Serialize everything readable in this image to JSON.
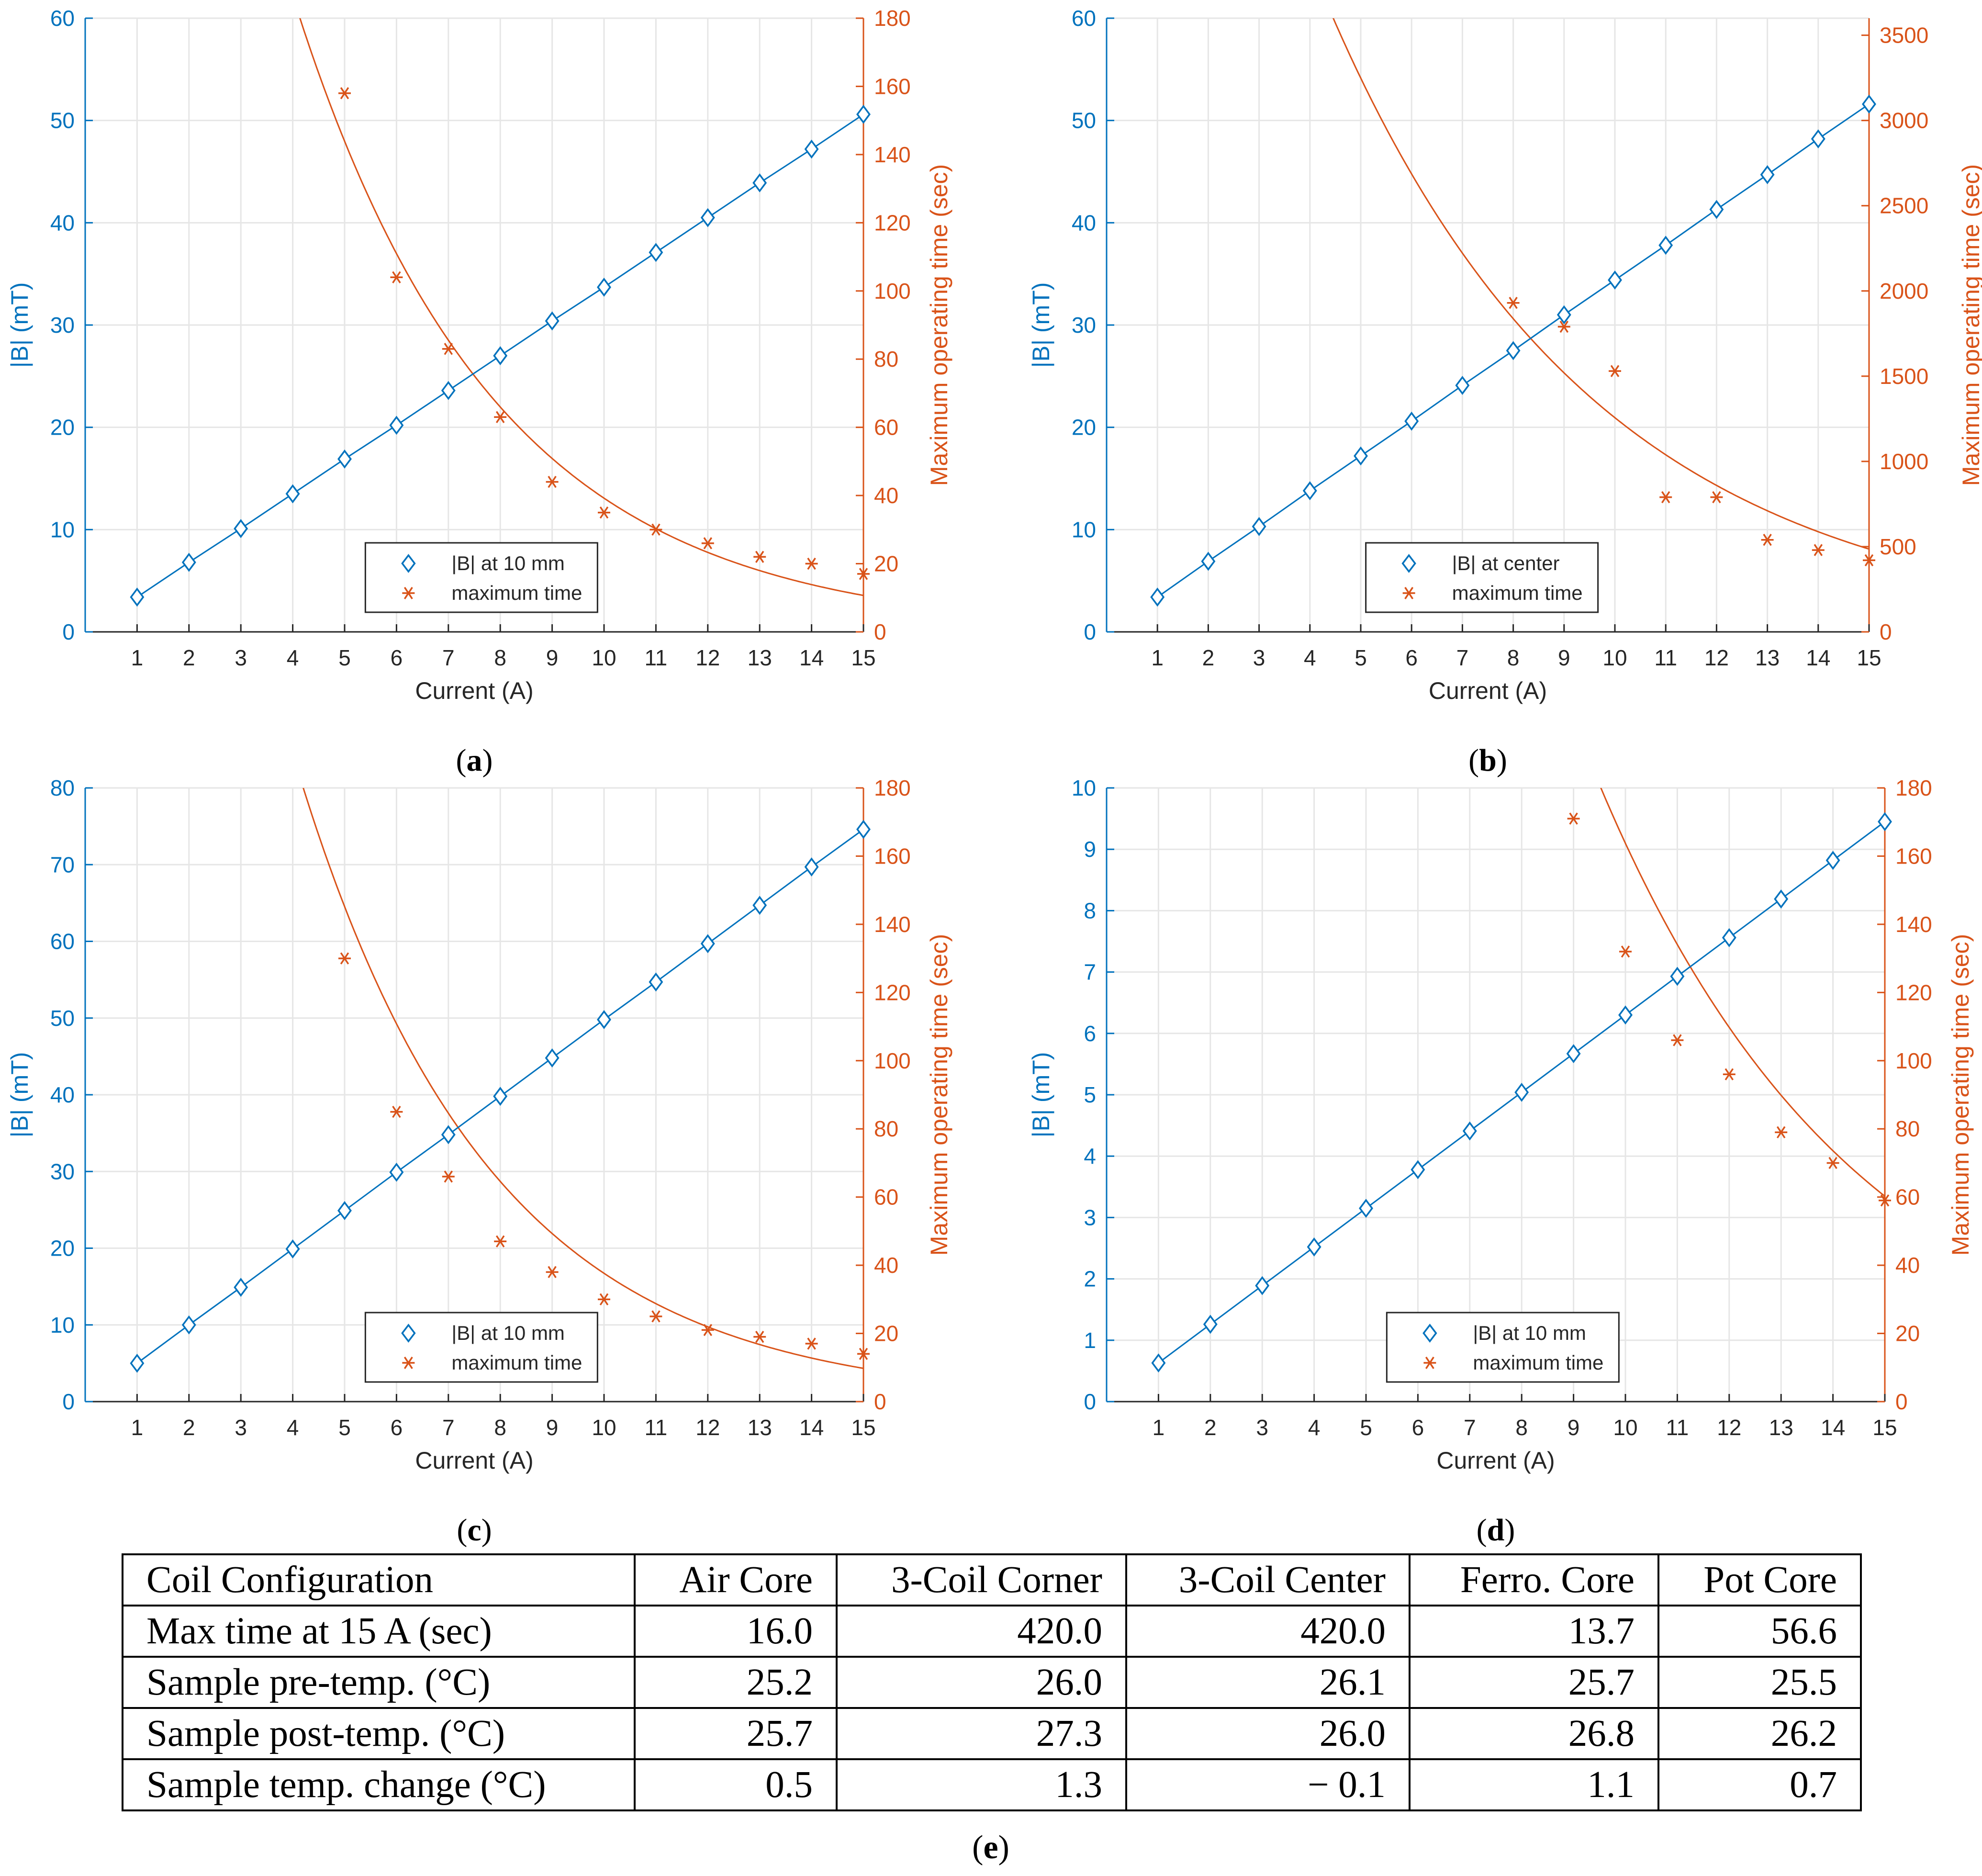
{
  "chart_data": [
    {
      "id": "a",
      "type": "line",
      "caption": "a",
      "xlabel": "Current (A)",
      "ylabel": "|B| (mT)",
      "ylabel_right": "Maximum operating time (sec)",
      "x": [
        1,
        2,
        3,
        4,
        5,
        6,
        7,
        8,
        9,
        10,
        11,
        12,
        13,
        14,
        15
      ],
      "xlim": [
        0,
        15
      ],
      "ylim": [
        0,
        60
      ],
      "yticks": [
        0,
        10,
        20,
        30,
        40,
        50,
        60
      ],
      "ylim_right": [
        0,
        180
      ],
      "yticks_right": [
        0,
        20,
        40,
        60,
        80,
        100,
        120,
        140,
        160,
        180
      ],
      "grid": true,
      "legend": "bottom-right",
      "series": [
        {
          "name": "|B| at 10 mm",
          "axis": "left",
          "marker": "diamond",
          "values": [
            3.4,
            6.8,
            10.1,
            13.5,
            16.9,
            20.2,
            23.6,
            27.0,
            30.4,
            33.7,
            37.1,
            40.5,
            43.9,
            47.2,
            50.6
          ]
        },
        {
          "name": "maximum time",
          "axis": "right",
          "marker": "asterisk",
          "values": [
            null,
            null,
            null,
            null,
            158,
            104,
            83,
            63,
            44,
            35,
            30,
            26,
            22,
            20,
            17
          ]
        }
      ],
      "fit": {
        "axis": "right",
        "exp_a": 528,
        "exp_b": 0.26
      }
    },
    {
      "id": "b",
      "type": "line",
      "caption": "b",
      "xlabel": "Current (A)",
      "ylabel": "|B| (mT)",
      "ylabel_right": "Maximum operating time (sec)",
      "x": [
        1,
        2,
        3,
        4,
        5,
        6,
        7,
        8,
        9,
        10,
        11,
        12,
        13,
        14,
        15
      ],
      "xlim": [
        0,
        15
      ],
      "ylim": [
        0,
        60
      ],
      "yticks": [
        0,
        10,
        20,
        30,
        40,
        50,
        60
      ],
      "ylim_right": [
        0,
        3600
      ],
      "yticks_right": [
        0,
        500,
        1000,
        1500,
        2000,
        2500,
        3000,
        3500
      ],
      "grid": true,
      "legend": "bottom-right",
      "series": [
        {
          "name": "|B| at center",
          "axis": "left",
          "marker": "diamond",
          "values": [
            3.4,
            6.9,
            10.3,
            13.8,
            17.2,
            20.6,
            24.1,
            27.5,
            31.0,
            34.4,
            37.8,
            41.3,
            44.7,
            48.2,
            51.6
          ]
        },
        {
          "name": "maximum time",
          "axis": "right",
          "marker": "asterisk",
          "values": [
            null,
            null,
            null,
            null,
            null,
            null,
            null,
            1930,
            1790,
            1530,
            790,
            790,
            540,
            480,
            420
          ]
        }
      ],
      "fit": {
        "axis": "right",
        "exp_a": 8400,
        "exp_b": 0.19
      }
    },
    {
      "id": "c",
      "type": "line",
      "caption": "c",
      "xlabel": "Current (A)",
      "ylabel": "|B| (mT)",
      "ylabel_right": "Maximum operating time (sec)",
      "x": [
        1,
        2,
        3,
        4,
        5,
        6,
        7,
        8,
        9,
        10,
        11,
        12,
        13,
        14,
        15
      ],
      "xlim": [
        0,
        15
      ],
      "ylim": [
        0,
        80
      ],
      "yticks": [
        0,
        10,
        20,
        30,
        40,
        50,
        60,
        70,
        80
      ],
      "ylim_right": [
        0,
        180
      ],
      "yticks_right": [
        0,
        20,
        40,
        60,
        80,
        100,
        120,
        140,
        160,
        180
      ],
      "grid": true,
      "legend": "bottom-right",
      "series": [
        {
          "name": "|B| at 10 mm",
          "axis": "left",
          "marker": "diamond",
          "values": [
            5.0,
            10.0,
            14.9,
            19.9,
            24.9,
            29.9,
            34.8,
            39.8,
            44.8,
            49.8,
            54.7,
            59.7,
            64.7,
            69.7,
            74.6
          ]
        },
        {
          "name": "maximum time",
          "axis": "right",
          "marker": "asterisk",
          "values": [
            null,
            null,
            null,
            null,
            130,
            85,
            66,
            47,
            38,
            30,
            25,
            21,
            19,
            17,
            14
          ]
        }
      ],
      "fit": {
        "axis": "right",
        "exp_a": 560,
        "exp_b": 0.27
      }
    },
    {
      "id": "d",
      "type": "line",
      "caption": "d",
      "xlabel": "Current (A)",
      "ylabel": "|B| (mT)",
      "ylabel_right": "Maximum operating time (sec)",
      "x": [
        1,
        2,
        3,
        4,
        5,
        6,
        7,
        8,
        9,
        10,
        11,
        12,
        13,
        14,
        15
      ],
      "xlim": [
        0,
        15
      ],
      "ylim": [
        0,
        10
      ],
      "yticks": [
        0,
        1,
        2,
        3,
        4,
        5,
        6,
        7,
        8,
        9,
        10
      ],
      "ylim_right": [
        0,
        180
      ],
      "yticks_right": [
        0,
        20,
        40,
        60,
        80,
        100,
        120,
        140,
        160,
        180
      ],
      "grid": true,
      "legend": "bottom-right",
      "series": [
        {
          "name": "|B| at 10 mm",
          "axis": "left",
          "marker": "diamond",
          "values": [
            0.63,
            1.26,
            1.89,
            2.52,
            3.15,
            3.78,
            4.41,
            5.04,
            5.67,
            6.3,
            6.93,
            7.56,
            8.19,
            8.82,
            9.45
          ]
        },
        {
          "name": "maximum time",
          "axis": "right",
          "marker": "asterisk",
          "values": [
            null,
            null,
            null,
            null,
            null,
            null,
            null,
            null,
            171,
            132,
            106,
            96,
            79,
            70,
            59
          ]
        }
      ],
      "fit": {
        "axis": "right",
        "exp_a": 1210,
        "exp_b": 0.2
      }
    }
  ],
  "colors": {
    "blue": "#0072BD",
    "orange": "#D95319",
    "grid": "#e6e6e6",
    "axis": "#262626"
  },
  "table": {
    "caption": "e",
    "headers": [
      "Coil Configuration",
      "Air Core",
      "3-Coil Corner",
      "3-Coil Center",
      "Ferro. Core",
      "Pot Core"
    ],
    "rows": [
      [
        "Max time at 15 A (sec)",
        "16.0",
        "420.0",
        "420.0",
        "13.7",
        "56.6"
      ],
      [
        "Sample pre-temp. (°C)",
        "25.2",
        "26.0",
        "26.1",
        "25.7",
        "25.5"
      ],
      [
        "Sample post-temp. (°C)",
        "25.7",
        "27.3",
        "26.0",
        "26.8",
        "26.2"
      ],
      [
        "Sample temp. change (°C)",
        "0.5",
        "1.3",
        "− 0.1",
        "1.1",
        "0.7"
      ]
    ]
  }
}
